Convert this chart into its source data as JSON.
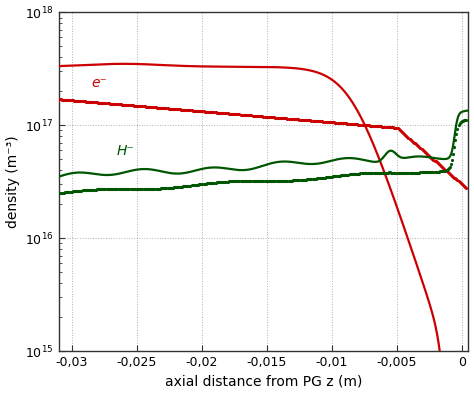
{
  "title": "",
  "xlabel": "axial distance from PG z (m)",
  "ylabel": "density (m⁻³)",
  "xlim": [
    -0.031,
    0.0005
  ],
  "ylim": [
    1000000000000000.0,
    1e+18
  ],
  "grid_color": "#b0b0b0",
  "bg_color": "#ffffff",
  "e_label": "e⁻",
  "h_label": "H⁻",
  "e_color": "#cc0000",
  "h_color": "#005500",
  "tick_label_fontsize": 9,
  "axis_label_fontsize": 10,
  "annotation_fontsize": 10,
  "xticks": [
    -0.03,
    -0.025,
    -0.02,
    -0.015,
    -0.01,
    -0.005,
    0
  ],
  "xlabels": [
    "-0,03",
    "-0,025",
    "-0,02",
    "-0,015",
    "-0,01",
    "-0,005",
    "0"
  ]
}
